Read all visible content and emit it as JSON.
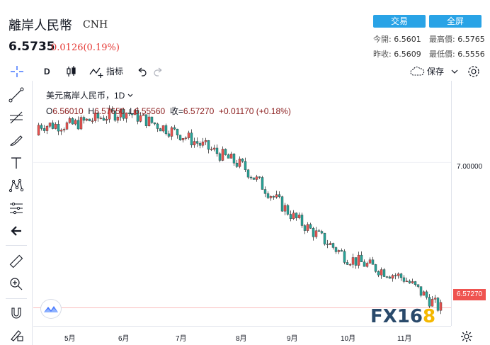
{
  "quote": {
    "name": "離岸人民幣",
    "code": "CNH",
    "last": "6.5735",
    "change": "0.0126(0.19%)",
    "trade_button": "交易",
    "fullscreen_button": "全屏",
    "open_label": "今開:",
    "open": "6.5601",
    "high_label": "最高價:",
    "high": "6.5765",
    "prev_close_label": "昨收:",
    "prev_close": "6.5609",
    "low_label": "最低價:",
    "low": "6.5556"
  },
  "toolbar": {
    "interval": "D",
    "indicators_label": "指标",
    "save_label": "保存"
  },
  "legend": {
    "title": "美元离岸人民币，1D",
    "interval_suffix": "",
    "o_label": "O",
    "o": "6.56010",
    "h_label": "H",
    "h": "6.57650",
    "l_label": "L",
    "l": "6.55560",
    "c_label": "收=",
    "c": "6.57270",
    "chg": "+0.01170 (+0.18%)"
  },
  "axis": {
    "price_tick": "7.00000",
    "current_price": "6.57270",
    "months": [
      "5月",
      "6月",
      "7月",
      "8月",
      "9月",
      "10月",
      "11月"
    ]
  },
  "watermark": {
    "fx": "FX16",
    "eight": "8"
  },
  "colors": {
    "up": "#26a69a",
    "down": "#ef5350",
    "accent": "#29a3e6"
  },
  "chart_data": {
    "type": "candlestick",
    "x": [
      "5月",
      "6月",
      "7月",
      "8月",
      "9月",
      "10月",
      "11月"
    ],
    "close_by_month_start": [
      7.11,
      7.15,
      7.08,
      6.99,
      6.84,
      6.72,
      6.66
    ],
    "last_close": 6.5727,
    "ylabel": "",
    "y_tick": 7.0
  }
}
